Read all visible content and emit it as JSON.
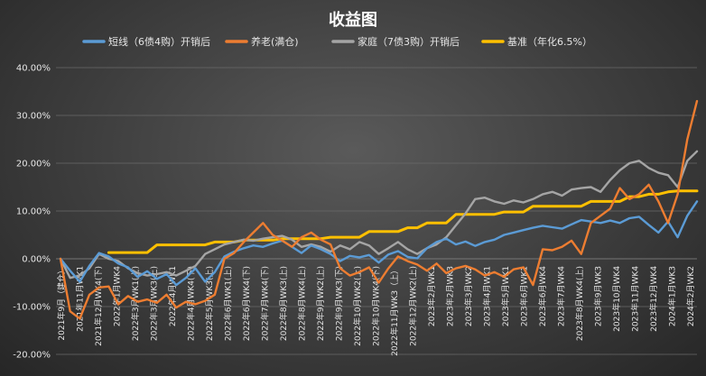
{
  "chart_data": {
    "type": "line",
    "title": "收益图",
    "ylim": [
      -20,
      40
    ],
    "yticks": [
      "-20.00%",
      "-10.00%",
      "0.00%",
      "10.00%",
      "20.00%",
      "30.00%",
      "40.00%"
    ],
    "grid": true,
    "legend_position": "top",
    "x_labels": [
      "2021年9月（建仓）",
      "2021年11月WK1",
      "2021年12月WK4(下)",
      "2022年1月WK4",
      "2022年3月WK1(上)",
      "2022年3月WK3(上)",
      "2022年4月WK1",
      "2022年4月WK4(下)",
      "2022年5月WK3(上)",
      "2022年6月WK1(上)",
      "2022年6月WK4(下)",
      "2022年7月WK4(下)",
      "2022年8月WK3(上)",
      "2022年8月WK4(上)",
      "2022年9月WK2(上)",
      "2022年9月WK3(下)",
      "2022年10月WK2(上)",
      "2022年10月WK4(下)",
      "2022年11月WK3（上）",
      "2022年12月WK2(上)",
      "2023年2月WK1",
      "2023年2月WK3",
      "2023年3月WK2",
      "2023年4月WK1",
      "2023年5月WK1",
      "2023年6月WK1",
      "2023年6月WK4",
      "2023年7月WK4",
      "2023年8月WK4(上)",
      "2023年9月WK3",
      "2023年10月WK4",
      "2023年11月WK4",
      "2023年12月WK4",
      "2024年1月WK3",
      "2024年2月WK2"
    ],
    "series": [
      {
        "name": "短线（6债4购）开销后",
        "color": "#5b9bd5",
        "values": [
          0.0,
          -2.5,
          -4.8,
          -1.5,
          1.2,
          0.5,
          -1.0,
          -1.8,
          -3.8,
          -2.6,
          -4.2,
          -3.2,
          -5.5,
          -4.0,
          -2.0,
          -4.8,
          -2.8,
          0.5,
          1.5,
          2.2,
          2.8,
          2.5,
          3.2,
          3.8,
          2.5,
          1.2,
          2.8,
          2.0,
          1.0,
          -0.5,
          0.6,
          0.3,
          0.8,
          -0.8,
          0.9,
          1.6,
          0.4,
          0.1,
          2.2,
          3.5,
          4.2,
          3.0,
          3.6,
          2.7,
          3.5,
          4.0,
          5.0,
          5.5,
          6.0,
          6.5,
          6.9,
          6.6,
          6.3,
          7.2,
          8.1,
          7.8,
          7.5,
          8.0,
          7.5,
          8.5,
          8.8,
          7.1,
          5.5,
          7.8,
          4.5,
          9.0,
          12.0
        ]
      },
      {
        "name": "养老(满仓)",
        "color": "#ed7d31",
        "values": [
          0.0,
          -11.0,
          -12.5,
          -7.5,
          -6.0,
          -5.8,
          -9.5,
          -7.8,
          -9.0,
          -8.5,
          -9.2,
          -7.5,
          -10.2,
          -9.0,
          -9.5,
          -8.8,
          -7.5,
          0.0,
          1.2,
          3.5,
          5.5,
          7.5,
          5.0,
          3.8,
          2.5,
          4.5,
          5.5,
          4.0,
          3.0,
          -2.0,
          -3.5,
          -2.8,
          -1.8,
          -5.0,
          -2.0,
          0.5,
          -0.5,
          -1.2,
          -2.5,
          -1.0,
          -3.0,
          -2.0,
          -1.5,
          -2.2,
          -3.5,
          -2.8,
          -3.8,
          -2.2,
          -1.8,
          -5.5,
          2.0,
          1.8,
          2.5,
          3.8,
          1.0,
          7.5,
          9.0,
          10.5,
          14.8,
          12.5,
          13.5,
          15.5,
          12.0,
          7.5,
          13.5,
          25.0,
          33.0
        ]
      },
      {
        "name": "家庭（7债3购）开销后",
        "color": "#a5a5a5",
        "values": [
          0.0,
          -4.0,
          -3.5,
          -2.0,
          1.0,
          0.0,
          -0.5,
          -2.0,
          -3.0,
          -3.5,
          -3.2,
          -2.8,
          -3.5,
          -2.5,
          -1.5,
          1.0,
          2.0,
          3.0,
          3.5,
          4.0,
          3.8,
          4.2,
          4.5,
          4.8,
          4.0,
          2.5,
          3.0,
          2.5,
          1.5,
          2.8,
          2.0,
          3.5,
          2.8,
          1.0,
          2.2,
          3.5,
          2.0,
          1.0,
          2.2,
          3.0,
          4.5,
          7.0,
          9.5,
          12.5,
          12.8,
          12.0,
          11.5,
          12.2,
          11.8,
          12.5,
          13.5,
          14.0,
          13.2,
          14.5,
          14.8,
          15.0,
          14.0,
          16.5,
          18.5,
          20.0,
          20.5,
          19.0,
          18.0,
          17.5,
          15.0,
          20.5,
          22.5
        ]
      },
      {
        "name": "基准（年化6.5%）",
        "color": "#ffc000",
        "values": [
          null,
          null,
          null,
          null,
          null,
          1.3,
          1.3,
          1.3,
          1.3,
          1.3,
          2.9,
          2.9,
          2.9,
          2.9,
          2.9,
          2.9,
          3.5,
          3.5,
          3.5,
          3.9,
          3.9,
          3.9,
          3.9,
          4.2,
          4.2,
          4.2,
          4.2,
          4.2,
          4.5,
          4.5,
          4.5,
          4.5,
          5.7,
          5.7,
          5.7,
          5.7,
          6.5,
          6.5,
          7.5,
          7.5,
          7.5,
          9.3,
          9.3,
          9.3,
          9.3,
          9.3,
          9.8,
          9.8,
          9.8,
          11.0,
          11.0,
          11.0,
          11.0,
          11.0,
          11.0,
          12.0,
          12.0,
          12.0,
          12.0,
          13.0,
          13.0,
          13.5,
          13.5,
          14.0,
          14.2,
          14.2,
          14.2
        ]
      }
    ]
  }
}
